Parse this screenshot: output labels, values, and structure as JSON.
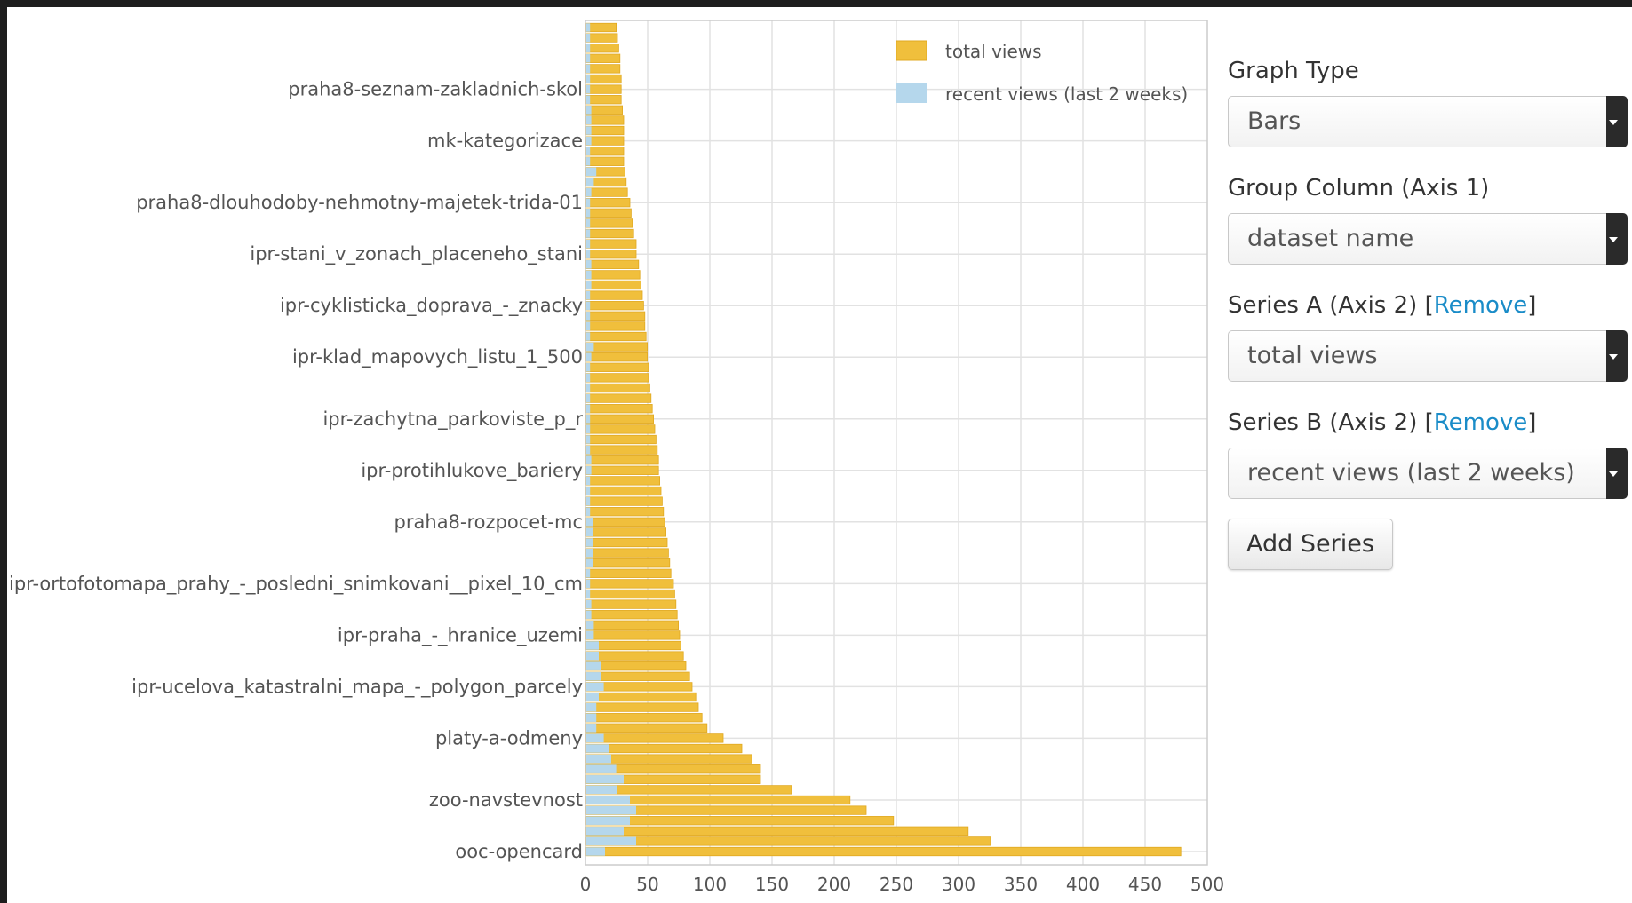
{
  "chart_data": {
    "type": "bar",
    "orientation": "horizontal",
    "series": [
      {
        "name": "total views",
        "color": "#f0bf3c"
      },
      {
        "name": "recent views (last 2 weeks)",
        "color": "#b5d7ec"
      }
    ],
    "y_tick_labels": [
      "praha8-seznam-zakladnich-skol",
      "mk-kategorizace",
      "praha8-dlouhodoby-nehmotny-majetek-trida-01",
      "ipr-stani_v_zonach_placeneho_stani",
      "ipr-cyklisticka_doprava_-_znacky",
      "ipr-klad_mapovych_listu_1_500",
      "ipr-zachytna_parkoviste_p_r",
      "ipr-protihlukove_bariery",
      "praha8-rozpocet-mc",
      "ipr-ortofotomapa_prahy_-_posledni_snimkovani__pixel_10_cm",
      "ipr-praha_-_hranice_uzemi",
      "ipr-ucelova_katastralni_mapa_-_polygon_parcely",
      "platy-a-odmeny",
      "zoo-navstevnost",
      "ooc-opencard"
    ],
    "total_views": [
      24,
      25,
      26,
      27,
      27,
      28,
      28,
      28,
      29,
      30,
      30,
      30,
      30,
      30,
      31,
      32,
      33,
      35,
      36,
      37,
      38,
      40,
      40,
      42,
      43,
      44,
      45,
      46,
      47,
      47,
      48,
      49,
      49,
      50,
      50,
      51,
      52,
      53,
      54,
      55,
      56,
      57,
      58,
      58,
      59,
      60,
      61,
      62,
      63,
      64,
      65,
      66,
      67,
      68,
      70,
      71,
      72,
      73,
      74,
      75,
      76,
      78,
      80,
      83,
      85,
      88,
      90,
      93,
      97,
      110,
      125,
      133,
      140,
      140,
      165,
      212,
      225,
      247,
      307,
      325,
      478
    ],
    "recent_views": [
      3,
      3,
      3,
      3,
      3,
      3,
      3,
      3,
      4,
      4,
      4,
      4,
      3,
      3,
      8,
      6,
      4,
      3,
      3,
      3,
      3,
      3,
      3,
      4,
      4,
      4,
      3,
      3,
      3,
      3,
      3,
      6,
      4,
      3,
      3,
      3,
      3,
      3,
      3,
      3,
      3,
      3,
      4,
      4,
      3,
      3,
      3,
      3,
      5,
      5,
      5,
      5,
      5,
      3,
      3,
      3,
      4,
      4,
      6,
      6,
      10,
      10,
      12,
      12,
      14,
      10,
      8,
      8,
      8,
      14,
      18,
      20,
      24,
      30,
      25,
      35,
      40,
      35,
      30,
      40,
      15
    ],
    "xlim": [
      0,
      500
    ],
    "x_ticks": [
      0,
      50,
      100,
      150,
      200,
      250,
      300,
      350,
      400,
      450,
      500
    ],
    "grid": true,
    "legend_position": "top-right"
  },
  "panel": {
    "graph_type_label": "Graph Type",
    "graph_type_value": "Bars",
    "group_column_label": "Group Column (Axis 1)",
    "group_column_value": "dataset name",
    "series_a_label": "Series A (Axis 2) [",
    "series_a_value": "total views",
    "series_b_label": "Series B (Axis 2) [",
    "series_b_value": "recent views (last 2 weeks)",
    "remove_label": "Remove",
    "bracket_close": "]",
    "add_series_label": "Add Series"
  }
}
